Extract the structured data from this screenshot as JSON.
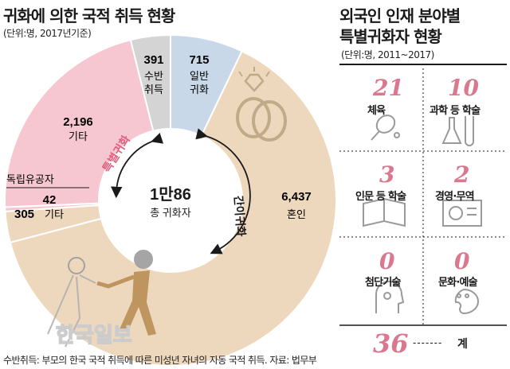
{
  "left_title": "귀화에 의한 국적 취득 현황",
  "left_unit": "(단위:명, 2017년기준)",
  "right_title_line1": "외국인 인재 분야별",
  "right_title_line2": "특별귀화자 현황",
  "right_unit": "(단위:명, 2011~2017)",
  "center_value": "1만86",
  "center_label": "총 귀화자",
  "special_arrow_label": "특별귀화",
  "general_arrow_label": "간이귀화",
  "footnote": "수반취득: 부모의 한국 국적 취득에 따른 미성년 자녀의 자동 국적 취득. 자료: 법무부",
  "watermark": "한국일보",
  "colors": {
    "special": "#f6c7d1",
    "general_naturalization": "#c9d8e8",
    "accompany": "#d4d4d4",
    "simple": "#eed8bd",
    "accent_pink": "#d9788e",
    "special_pink_text": "#e0607e"
  },
  "chart_data": [
    {
      "type": "pie",
      "title": "귀화에 의한 국적 취득 현황",
      "total": 10086,
      "slices": [
        {
          "label": "일반 귀화",
          "value": 715,
          "display": "715",
          "group": "일반귀화"
        },
        {
          "label": "혼인",
          "value": 6437,
          "display": "6,437",
          "group": "간이귀화"
        },
        {
          "label": "기타",
          "value": 305,
          "display": "305",
          "group": "간이귀화"
        },
        {
          "label": "독립유공자",
          "value": 42,
          "display": "42",
          "group": "특별귀화"
        },
        {
          "label": "기타",
          "value": 2196,
          "display": "2,196",
          "group": "특별귀화"
        },
        {
          "label": "수반 취득",
          "value": 391,
          "display": "391",
          "group": "수반취득"
        }
      ]
    },
    {
      "type": "table",
      "title": "외국인 인재 분야별 특별귀화자 현황",
      "rows": [
        {
          "field": "체육",
          "value": 21,
          "icon": "tennis-racket-icon"
        },
        {
          "field": "과학 등 학술",
          "value": 10,
          "icon": "flask-icon"
        },
        {
          "field": "인문 등 학술",
          "value": 3,
          "icon": "open-book-icon"
        },
        {
          "field": "경영·무역",
          "value": 2,
          "icon": "chart-presentation-icon"
        },
        {
          "field": "첨단기술",
          "value": 0,
          "icon": "tech-head-icon"
        },
        {
          "field": "문화·예술",
          "value": 0,
          "icon": "paint-palette-icon"
        }
      ],
      "total": {
        "label": "계",
        "value": 36,
        "dashes": "-------"
      }
    }
  ]
}
